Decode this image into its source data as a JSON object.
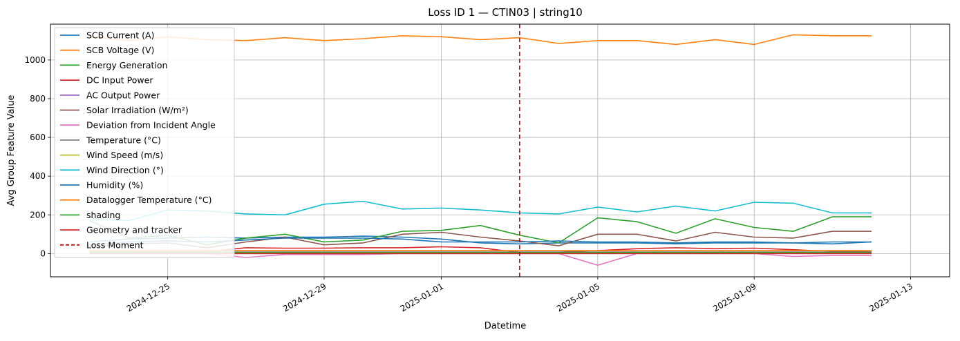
{
  "chart_data": {
    "type": "line",
    "title": "Loss ID 1 — CTIN03 | string10",
    "xlabel": "Datetime",
    "ylabel": "Avg Group Feature Value",
    "x_start": "2024-12-23",
    "x_range": [
      "2024-12-22",
      "2025-01-14"
    ],
    "ylim": [
      -120,
      1185
    ],
    "x_ticks": [
      "2024-12-25",
      "2024-12-29",
      "2025-01-01",
      "2025-01-05",
      "2025-01-09",
      "2025-01-13"
    ],
    "y_ticks": [
      0,
      200,
      400,
      600,
      800,
      1000
    ],
    "grid": true,
    "legend_position": "upper-left",
    "series": [
      {
        "name": "SCB Current (A)",
        "color": "#1f77b4",
        "values": [
          60,
          75,
          80,
          85,
          80,
          85,
          85,
          90,
          85,
          75,
          55,
          50,
          55,
          55,
          55,
          50,
          55,
          55,
          55,
          50,
          60
        ]
      },
      {
        "name": "SCB Voltage (V)",
        "color": "#ff7f0e",
        "values": [
          1120,
          1100,
          1120,
          1105,
          1100,
          1115,
          1100,
          1110,
          1125,
          1120,
          1105,
          1115,
          1085,
          1100,
          1100,
          1080,
          1105,
          1080,
          1130,
          1125,
          1125
        ]
      },
      {
        "name": "Energy Generation",
        "color": "#2ca02c",
        "values": [
          170,
          80,
          95,
          45,
          80,
          100,
          60,
          70,
          115,
          120,
          145,
          95,
          55,
          185,
          165,
          105,
          180,
          135,
          115,
          190,
          190
        ]
      },
      {
        "name": "DC Input Power",
        "color": "#d62728",
        "values": [
          10,
          10,
          10,
          10,
          30,
          28,
          28,
          30,
          30,
          35,
          30,
          5,
          5,
          15,
          25,
          30,
          25,
          28,
          20,
          10,
          10
        ]
      },
      {
        "name": "AC Output Power",
        "color": "#9467bd",
        "values": [
          0,
          0,
          0,
          0,
          0,
          0,
          0,
          0,
          0,
          0,
          0,
          0,
          0,
          0,
          0,
          0,
          0,
          0,
          0,
          0,
          0
        ]
      },
      {
        "name": "Solar Irradiation (W/m²)",
        "color": "#8c564b",
        "values": [
          35,
          50,
          55,
          30,
          60,
          85,
          45,
          55,
          100,
          110,
          85,
          65,
          40,
          100,
          100,
          65,
          110,
          85,
          80,
          115,
          115
        ]
      },
      {
        "name": "Deviation from Incident Angle",
        "color": "#e377c2",
        "values": [
          0,
          0,
          0,
          0,
          -20,
          -5,
          -5,
          -5,
          0,
          0,
          0,
          0,
          0,
          -60,
          0,
          0,
          0,
          0,
          -15,
          -10,
          -10
        ]
      },
      {
        "name": "Temperature (°C)",
        "color": "#7f7f7f",
        "values": [
          10,
          12,
          12,
          12,
          12,
          12,
          12,
          12,
          12,
          12,
          12,
          12,
          12,
          12,
          12,
          12,
          12,
          12,
          12,
          12,
          12
        ]
      },
      {
        "name": "Wind Speed (m/s)",
        "color": "#bcbd22",
        "values": [
          5,
          5,
          5,
          5,
          5,
          5,
          5,
          5,
          5,
          5,
          5,
          5,
          5,
          5,
          5,
          5,
          5,
          5,
          5,
          5,
          5
        ]
      },
      {
        "name": "Wind Direction (°)",
        "color": "#17becf",
        "values": [
          180,
          170,
          225,
          220,
          205,
          200,
          255,
          270,
          230,
          235,
          225,
          210,
          205,
          240,
          215,
          245,
          220,
          265,
          260,
          210,
          210
        ]
      },
      {
        "name": "Humidity (%)",
        "color": "#1f77b4",
        "values": [
          45,
          60,
          65,
          60,
          70,
          80,
          80,
          80,
          75,
          60,
          60,
          60,
          65,
          60,
          60,
          55,
          60,
          60,
          55,
          60,
          60
        ]
      },
      {
        "name": "Datalogger Temperature (°C)",
        "color": "#ff7f0e",
        "values": [
          15,
          15,
          15,
          15,
          15,
          15,
          15,
          15,
          15,
          15,
          15,
          15,
          15,
          15,
          15,
          15,
          15,
          15,
          15,
          15,
          15
        ]
      },
      {
        "name": "shading",
        "color": "#2ca02c",
        "values": [
          5,
          5,
          5,
          5,
          5,
          5,
          5,
          5,
          5,
          5,
          5,
          5,
          5,
          5,
          5,
          5,
          5,
          5,
          5,
          5,
          5
        ]
      },
      {
        "name": "Geometry and tracker",
        "color": "#d62728",
        "values": [
          0,
          0,
          0,
          0,
          0,
          0,
          0,
          0,
          0,
          0,
          0,
          0,
          0,
          0,
          0,
          0,
          0,
          0,
          0,
          0,
          0
        ]
      }
    ],
    "annotations": [
      {
        "name": "Loss Moment",
        "x": "2025-01-03",
        "style": "dashed",
        "color": "#dd0000"
      }
    ]
  }
}
